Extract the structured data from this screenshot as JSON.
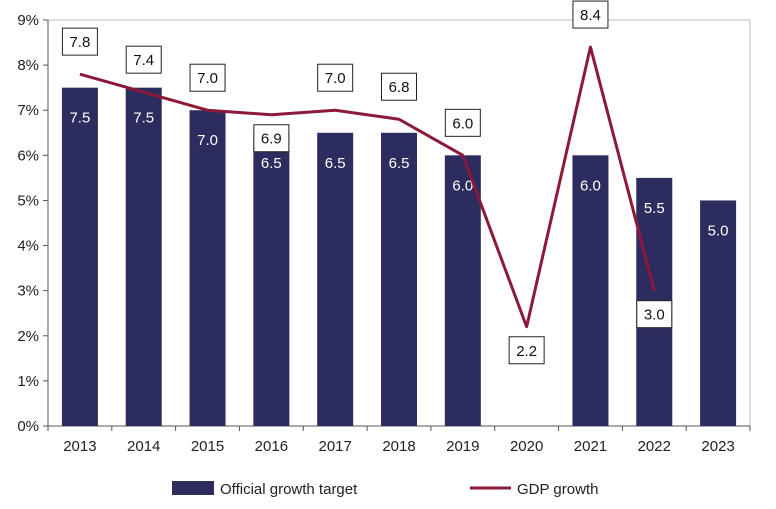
{
  "chart_data": {
    "type": "bar",
    "categories": [
      "2013",
      "2014",
      "2015",
      "2016",
      "2017",
      "2018",
      "2019",
      "2020",
      "2021",
      "2022",
      "2023"
    ],
    "series": [
      {
        "name": "Official growth target",
        "kind": "bar",
        "values": [
          7.5,
          7.5,
          7.0,
          6.5,
          6.5,
          6.5,
          6.0,
          null,
          6.0,
          5.5,
          5.0
        ],
        "labels": [
          "7.5",
          "7.5",
          "7.0",
          "6.5",
          "6.5",
          "6.5",
          "6.0",
          null,
          "6.0",
          "5.5",
          "5.0"
        ],
        "color": "#2c2c5e"
      },
      {
        "name": "GDP growth",
        "kind": "line",
        "values": [
          7.8,
          7.4,
          7.0,
          6.9,
          7.0,
          6.8,
          6.0,
          2.2,
          8.4,
          3.0,
          null
        ],
        "labels": [
          "7.8",
          "7.4",
          "7.0",
          "6.9",
          "7.0",
          "6.8",
          "6.0",
          "2.2",
          "8.4",
          "3.0",
          null
        ],
        "color": "#8b1a3a"
      }
    ],
    "yaxis": {
      "min": 0,
      "max": 9,
      "ticks": [
        0,
        1,
        2,
        3,
        4,
        5,
        6,
        7,
        8,
        9
      ],
      "tick_labels": [
        "0%",
        "1%",
        "2%",
        "3%",
        "4%",
        "5%",
        "6%",
        "7%",
        "8%",
        "9%"
      ]
    },
    "title": "",
    "xlabel": "",
    "ylabel": "",
    "legend": {
      "position": "bottom",
      "entries": [
        "Official growth target",
        "GDP growth"
      ]
    }
  }
}
